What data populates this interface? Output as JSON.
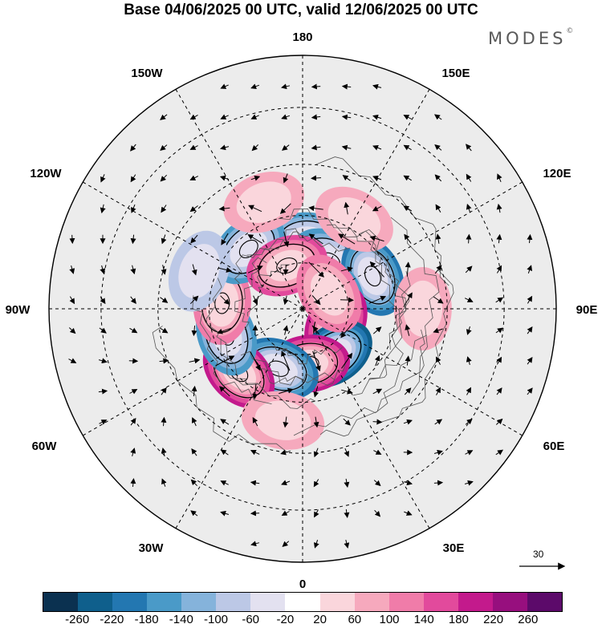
{
  "title": "Base 04/06/2025 00 UTC, valid 12/06/2025 00 UTC",
  "brand": "MODES",
  "brand_mark": "©",
  "map": {
    "projection": "north polar stereographic",
    "longitude_labels": {
      "top": "180",
      "top_left": "150W",
      "top_right": "150E",
      "upper_left": "120W",
      "upper_right": "120E",
      "left": "90W",
      "right": "90E",
      "lower_left": "60W",
      "lower_right": "60E",
      "bottom_left": "30W",
      "bottom_right": "30E",
      "bottom": "0"
    },
    "reference_vector": "30",
    "anomalies": [
      {
        "lon": 175,
        "colat": 22,
        "value": -160
      },
      {
        "lon": 150,
        "colat": 18,
        "value": -140
      },
      {
        "lon": 115,
        "colat": 25,
        "value": -170
      },
      {
        "lon": 95,
        "colat": 11,
        "value": -160
      },
      {
        "lon": 65,
        "colat": 12,
        "value": 200
      },
      {
        "lon": 35,
        "colat": 18,
        "value": -230
      },
      {
        "lon": 6,
        "colat": 18,
        "value": 200
      },
      {
        "lon": -22,
        "colat": 21,
        "value": -170
      },
      {
        "lon": -45,
        "colat": 29,
        "value": 180
      },
      {
        "lon": -71,
        "colat": 26,
        "value": -140
      },
      {
        "lon": -94,
        "colat": 26,
        "value": 110
      },
      {
        "lon": -138,
        "colat": 26,
        "value": -130
      },
      {
        "lon": -160,
        "colat": 15,
        "value": 130
      },
      {
        "lon": 120,
        "colat": 10,
        "value": 90
      },
      {
        "lon": 90,
        "colat": 38,
        "value": 70
      },
      {
        "lon": -110,
        "colat": 35,
        "value": -50
      },
      {
        "lon": -160,
        "colat": 36,
        "value": 60
      },
      {
        "lon": 150,
        "colat": 33,
        "value": 60
      },
      {
        "lon": -10,
        "colat": 36,
        "value": 60
      }
    ]
  },
  "colorbar": {
    "colors": [
      "#0b3150",
      "#0f5f8c",
      "#2377b1",
      "#4a9ac8",
      "#85b3db",
      "#bcc8e6",
      "#e3e1f0",
      "#ffffff",
      "#fad6dc",
      "#f6a9bd",
      "#f07ca9",
      "#e24a9c",
      "#c31a8c",
      "#970f7e",
      "#5c0a6a"
    ],
    "ticks": [
      "-260",
      "-220",
      "-180",
      "-140",
      "-100",
      "-60",
      "-20",
      "20",
      "60",
      "100",
      "140",
      "180",
      "220",
      "260"
    ]
  }
}
